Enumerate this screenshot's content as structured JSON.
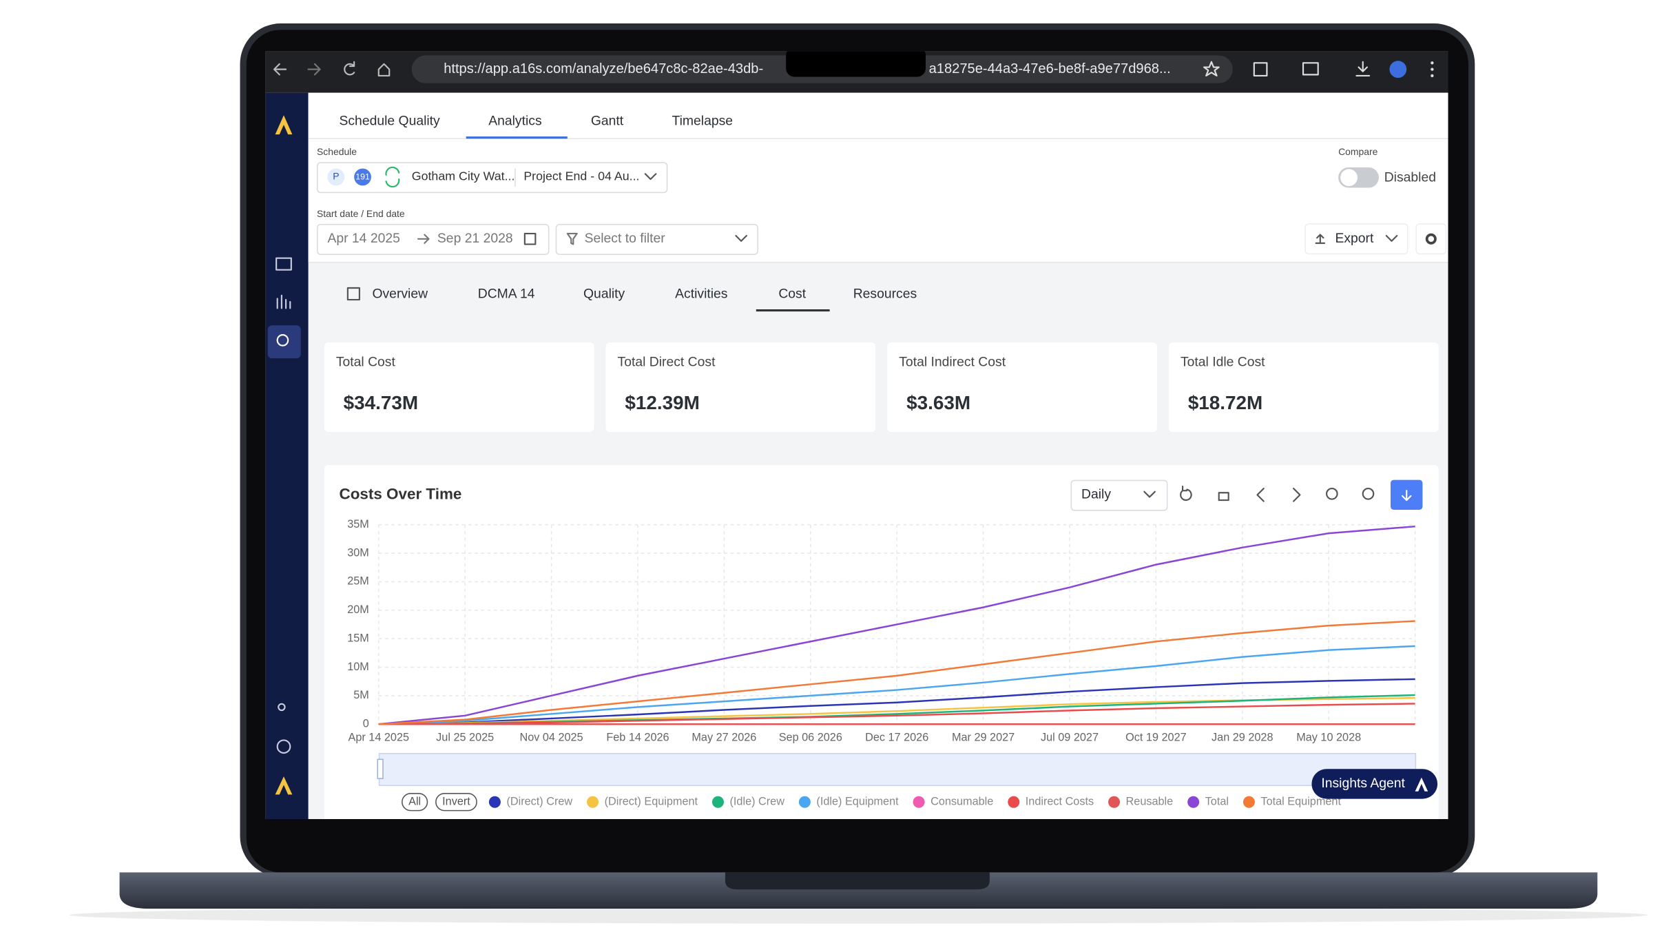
{
  "browser": {
    "url_start": "https://app.a16s.com/analyze/be647c8c-82ae-43db-",
    "url_end": "a18275e-44a3-47e6-be8f-a9e77d968..."
  },
  "tabs": [
    "Schedule Quality",
    "Analytics",
    "Gantt",
    "Timelapse"
  ],
  "schedule": {
    "label": "Schedule",
    "badge": "P",
    "count": "191",
    "name": "Gotham City Wat...",
    "version": "Project End - 04 Au..."
  },
  "compare": {
    "label": "Compare",
    "state": "Disabled"
  },
  "dates": {
    "label": "Start date  /  End date",
    "start": "Apr 14 2025",
    "end": "Sep 21 2028"
  },
  "filter": "Select to filter",
  "export": "Export",
  "subtabs": [
    "Overview",
    "DCMA 14",
    "Quality",
    "Activities",
    "Cost",
    "Resources"
  ],
  "cards": [
    {
      "title": "Total Cost",
      "value": "$34.73M"
    },
    {
      "title": "Total Direct Cost",
      "value": "$12.39M"
    },
    {
      "title": "Total Indirect Cost",
      "value": "$3.63M"
    },
    {
      "title": "Total Idle Cost",
      "value": "$18.72M"
    }
  ],
  "chart_panel": {
    "interval": "Daily",
    "insights": "Insights Agent",
    "legend_buttons": [
      "All",
      "Invert"
    ]
  },
  "chart_data": {
    "type": "line",
    "title": "Costs Over Time",
    "categories": [
      "Apr 14 2025",
      "Jul 25 2025",
      "Nov 04 2025",
      "Feb 14 2026",
      "May 27 2026",
      "Sep 06 2026",
      "Dec 17 2026",
      "Mar 29 2027",
      "Jul 09 2027",
      "Oct 19 2027",
      "Jan 29 2028",
      "May 10 2028",
      null
    ],
    "ylim": [
      0,
      35
    ],
    "yticks": [
      0,
      {
        "value": 5,
        "label": "5M"
      },
      {
        "value": 10,
        "label": "10M"
      },
      {
        "value": 15,
        "label": "15M"
      },
      {
        "value": 20,
        "label": "20M"
      },
      {
        "value": 25,
        "label": "25M"
      },
      {
        "value": 30,
        "label": "30M"
      },
      {
        "value": 35,
        "label": "35M"
      }
    ],
    "grid": true,
    "series": [
      {
        "name": "(Direct) Crew",
        "color": "#2a35b5",
        "values": [
          0,
          0.3,
          1,
          1.7,
          2.5,
          3.2,
          3.8,
          4.7,
          5.7,
          6.5,
          7.2,
          7.6,
          7.9
        ]
      },
      {
        "name": "(Direct) Equipment",
        "color": "#f5c342",
        "values": [
          0,
          0.2,
          0.6,
          1,
          1.4,
          1.8,
          2.3,
          2.9,
          3.5,
          3.9,
          4.2,
          4.4,
          4.6
        ]
      },
      {
        "name": "(Idle) Crew",
        "color": "#1db37b",
        "values": [
          0,
          0.1,
          0.4,
          0.7,
          1,
          1.3,
          1.8,
          2.4,
          3.1,
          3.6,
          4.1,
          4.7,
          5.1
        ]
      },
      {
        "name": "(Idle) Equipment",
        "color": "#4aa6f0",
        "values": [
          0,
          0.6,
          1.8,
          3,
          4,
          5,
          6,
          7.3,
          8.8,
          10.2,
          11.8,
          13,
          13.7
        ]
      },
      {
        "name": "Consumable",
        "color": "#f05ab0",
        "values": [
          0,
          0,
          0,
          0,
          0,
          0,
          0,
          0,
          0,
          0,
          0,
          0,
          0
        ]
      },
      {
        "name": "Indirect Costs",
        "color": "#e94b4b",
        "values": [
          0,
          0.1,
          0.3,
          0.6,
          0.9,
          1.2,
          1.5,
          1.9,
          2.4,
          2.8,
          3.1,
          3.4,
          3.6
        ]
      },
      {
        "name": "Reusable",
        "color": "#e05656",
        "values": [
          0,
          0,
          0,
          0,
          0,
          0,
          0,
          0,
          0,
          0,
          0,
          0,
          0
        ]
      },
      {
        "name": "Total",
        "color": "#8a44d6",
        "values": [
          0,
          1.5,
          5,
          8.5,
          11.5,
          14.5,
          17.5,
          20.5,
          24,
          28,
          31,
          33.5,
          34.7
        ]
      },
      {
        "name": "Total Equipment",
        "color": "#f27a36",
        "values": [
          0,
          0.8,
          2.5,
          4,
          5.5,
          7,
          8.5,
          10.5,
          12.5,
          14.5,
          16,
          17.3,
          18.1
        ]
      }
    ]
  }
}
